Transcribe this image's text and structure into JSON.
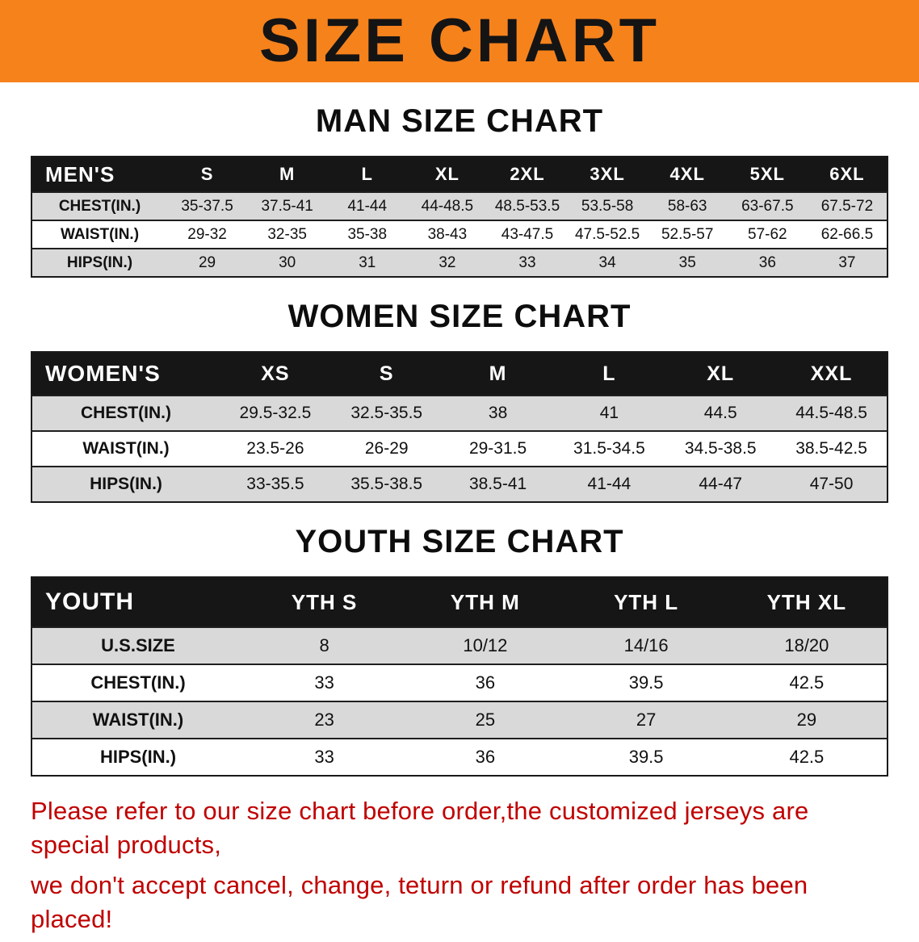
{
  "banner": {
    "title": "SIZE CHART"
  },
  "sections": [
    {
      "id": "mens",
      "title": "MAN SIZE CHART",
      "table": {
        "header": [
          "MEN'S",
          "S",
          "M",
          "L",
          "XL",
          "2XL",
          "3XL",
          "4XL",
          "5XL",
          "6XL"
        ],
        "rows": [
          [
            "CHEST(IN.)",
            "35-37.5",
            "37.5-41",
            "41-44",
            "44-48.5",
            "48.5-53.5",
            "53.5-58",
            "58-63",
            "63-67.5",
            "67.5-72"
          ],
          [
            "WAIST(IN.)",
            "29-32",
            "32-35",
            "35-38",
            "38-43",
            "43-47.5",
            "47.5-52.5",
            "52.5-57",
            "57-62",
            "62-66.5"
          ],
          [
            "HIPS(IN.)",
            "29",
            "30",
            "31",
            "32",
            "33",
            "34",
            "35",
            "36",
            "37"
          ]
        ]
      }
    },
    {
      "id": "womens",
      "title": "WOMEN SIZE CHART",
      "table": {
        "header": [
          "WOMEN'S",
          "XS",
          "S",
          "M",
          "L",
          "XL",
          "XXL"
        ],
        "rows": [
          [
            "CHEST(IN.)",
            "29.5-32.5",
            "32.5-35.5",
            "38",
            "41",
            "44.5",
            "44.5-48.5"
          ],
          [
            "WAIST(IN.)",
            "23.5-26",
            "26-29",
            "29-31.5",
            "31.5-34.5",
            "34.5-38.5",
            "38.5-42.5"
          ],
          [
            "HIPS(IN.)",
            "33-35.5",
            "35.5-38.5",
            "38.5-41",
            "41-44",
            "44-47",
            "47-50"
          ]
        ]
      }
    },
    {
      "id": "youth",
      "title": "YOUTH SIZE CHART",
      "table": {
        "header": [
          "YOUTH",
          "YTH S",
          "YTH M",
          "YTH L",
          "YTH XL"
        ],
        "rows": [
          [
            "U.S.SIZE",
            "8",
            "10/12",
            "14/16",
            "18/20"
          ],
          [
            "CHEST(IN.)",
            "33",
            "36",
            "39.5",
            "42.5"
          ],
          [
            "WAIST(IN.)",
            "23",
            "25",
            "27",
            "29"
          ],
          [
            "HIPS(IN.)",
            "33",
            "36",
            "39.5",
            "42.5"
          ]
        ]
      }
    }
  ],
  "footer": {
    "lines": [
      "Please refer to our size chart before order,the customized jerseys are special products,",
      "we don't accept cancel, change, teturn or refund after order has been placed!"
    ]
  },
  "colors": {
    "banner_bg": "#f6821c",
    "header_row_bg": "#161616",
    "header_row_text": "#ffffff",
    "row_stripe": "#d9d9d9",
    "notice_text": "#c00000"
  }
}
